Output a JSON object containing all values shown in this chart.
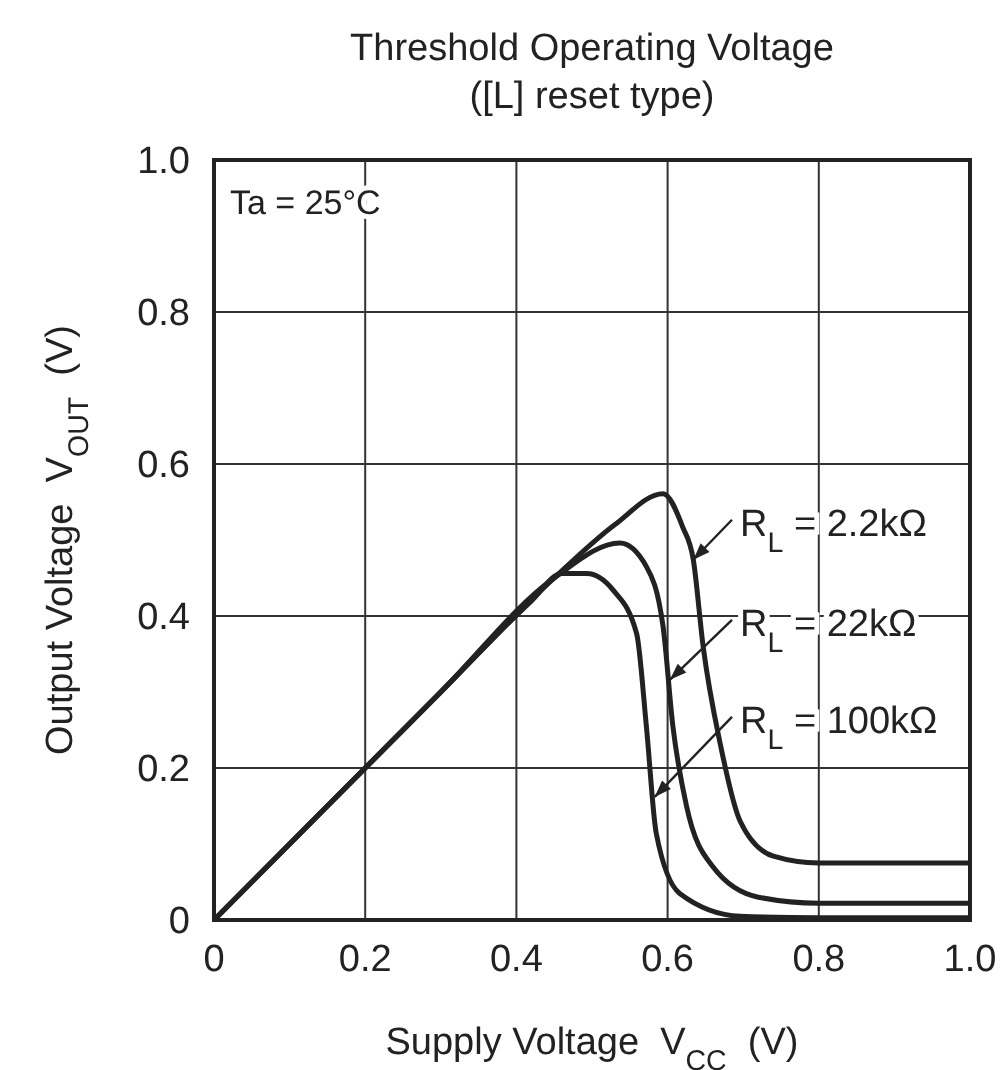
{
  "chart_data": {
    "type": "line",
    "title": "Threshold Operating Voltage\n([L] reset type)",
    "xlabel": "Supply Voltage  V$_{CC}$  (V)",
    "ylabel": "Output Voltage  V$_{OUT}$  (V)",
    "xlim": [
      0,
      1
    ],
    "ylim": [
      0,
      1
    ],
    "xticks": [
      0,
      0.2,
      0.4,
      0.6,
      0.8,
      {
        "value": 1,
        "label": "1.0"
      }
    ],
    "yticks": [
      0,
      0.2,
      0.4,
      0.6,
      0.8,
      {
        "value": 1,
        "label": "1.0"
      }
    ],
    "grid": true,
    "marker": "none",
    "line_style": "solid",
    "series": [
      {
        "color": "#222222",
        "x": [
          0,
          0.3,
          0.45,
          0.53,
          0.594,
          0.62,
          0.634,
          0.647,
          0.67,
          0.696,
          0.74,
          0.8,
          1
        ],
        "values": [
          0,
          0.3,
          0.45,
          0.52,
          0.561,
          0.517,
          0.474,
          0.36,
          0.23,
          0.13,
          0.084,
          0.075,
          0.075
        ]
      },
      {
        "color": "#222222",
        "x": [
          0,
          0.3,
          0.45,
          0.537,
          0.572,
          0.594,
          0.607,
          0.625,
          0.66,
          0.72,
          0.8,
          1
        ],
        "values": [
          0,
          0.3,
          0.45,
          0.496,
          0.465,
          0.386,
          0.255,
          0.15,
          0.07,
          0.03,
          0.022,
          0.022
        ]
      },
      {
        "color": "#222222",
        "x": [
          0,
          0.3,
          0.42,
          0.46,
          0.493,
          0.528,
          0.559,
          0.572,
          0.585,
          0.616,
          0.696,
          0.8,
          1
        ],
        "values": [
          0,
          0.3,
          0.42,
          0.456,
          0.456,
          0.434,
          0.377,
          0.254,
          0.114,
          0.035,
          0.005,
          0.003,
          0.003
        ]
      }
    ],
    "annotations": [
      "Ta = 25°C",
      {
        "text": "R$_{L}$ = 2.2kΩ",
        "x": 0.634,
        "y": 0.474
      },
      {
        "text": "R$_{L}$ = 22kΩ",
        "x": 0.603,
        "y": 0.316
      },
      {
        "text": "R$_{L}$ = 100kΩ",
        "x": 0.583,
        "y": 0.162
      }
    ]
  }
}
